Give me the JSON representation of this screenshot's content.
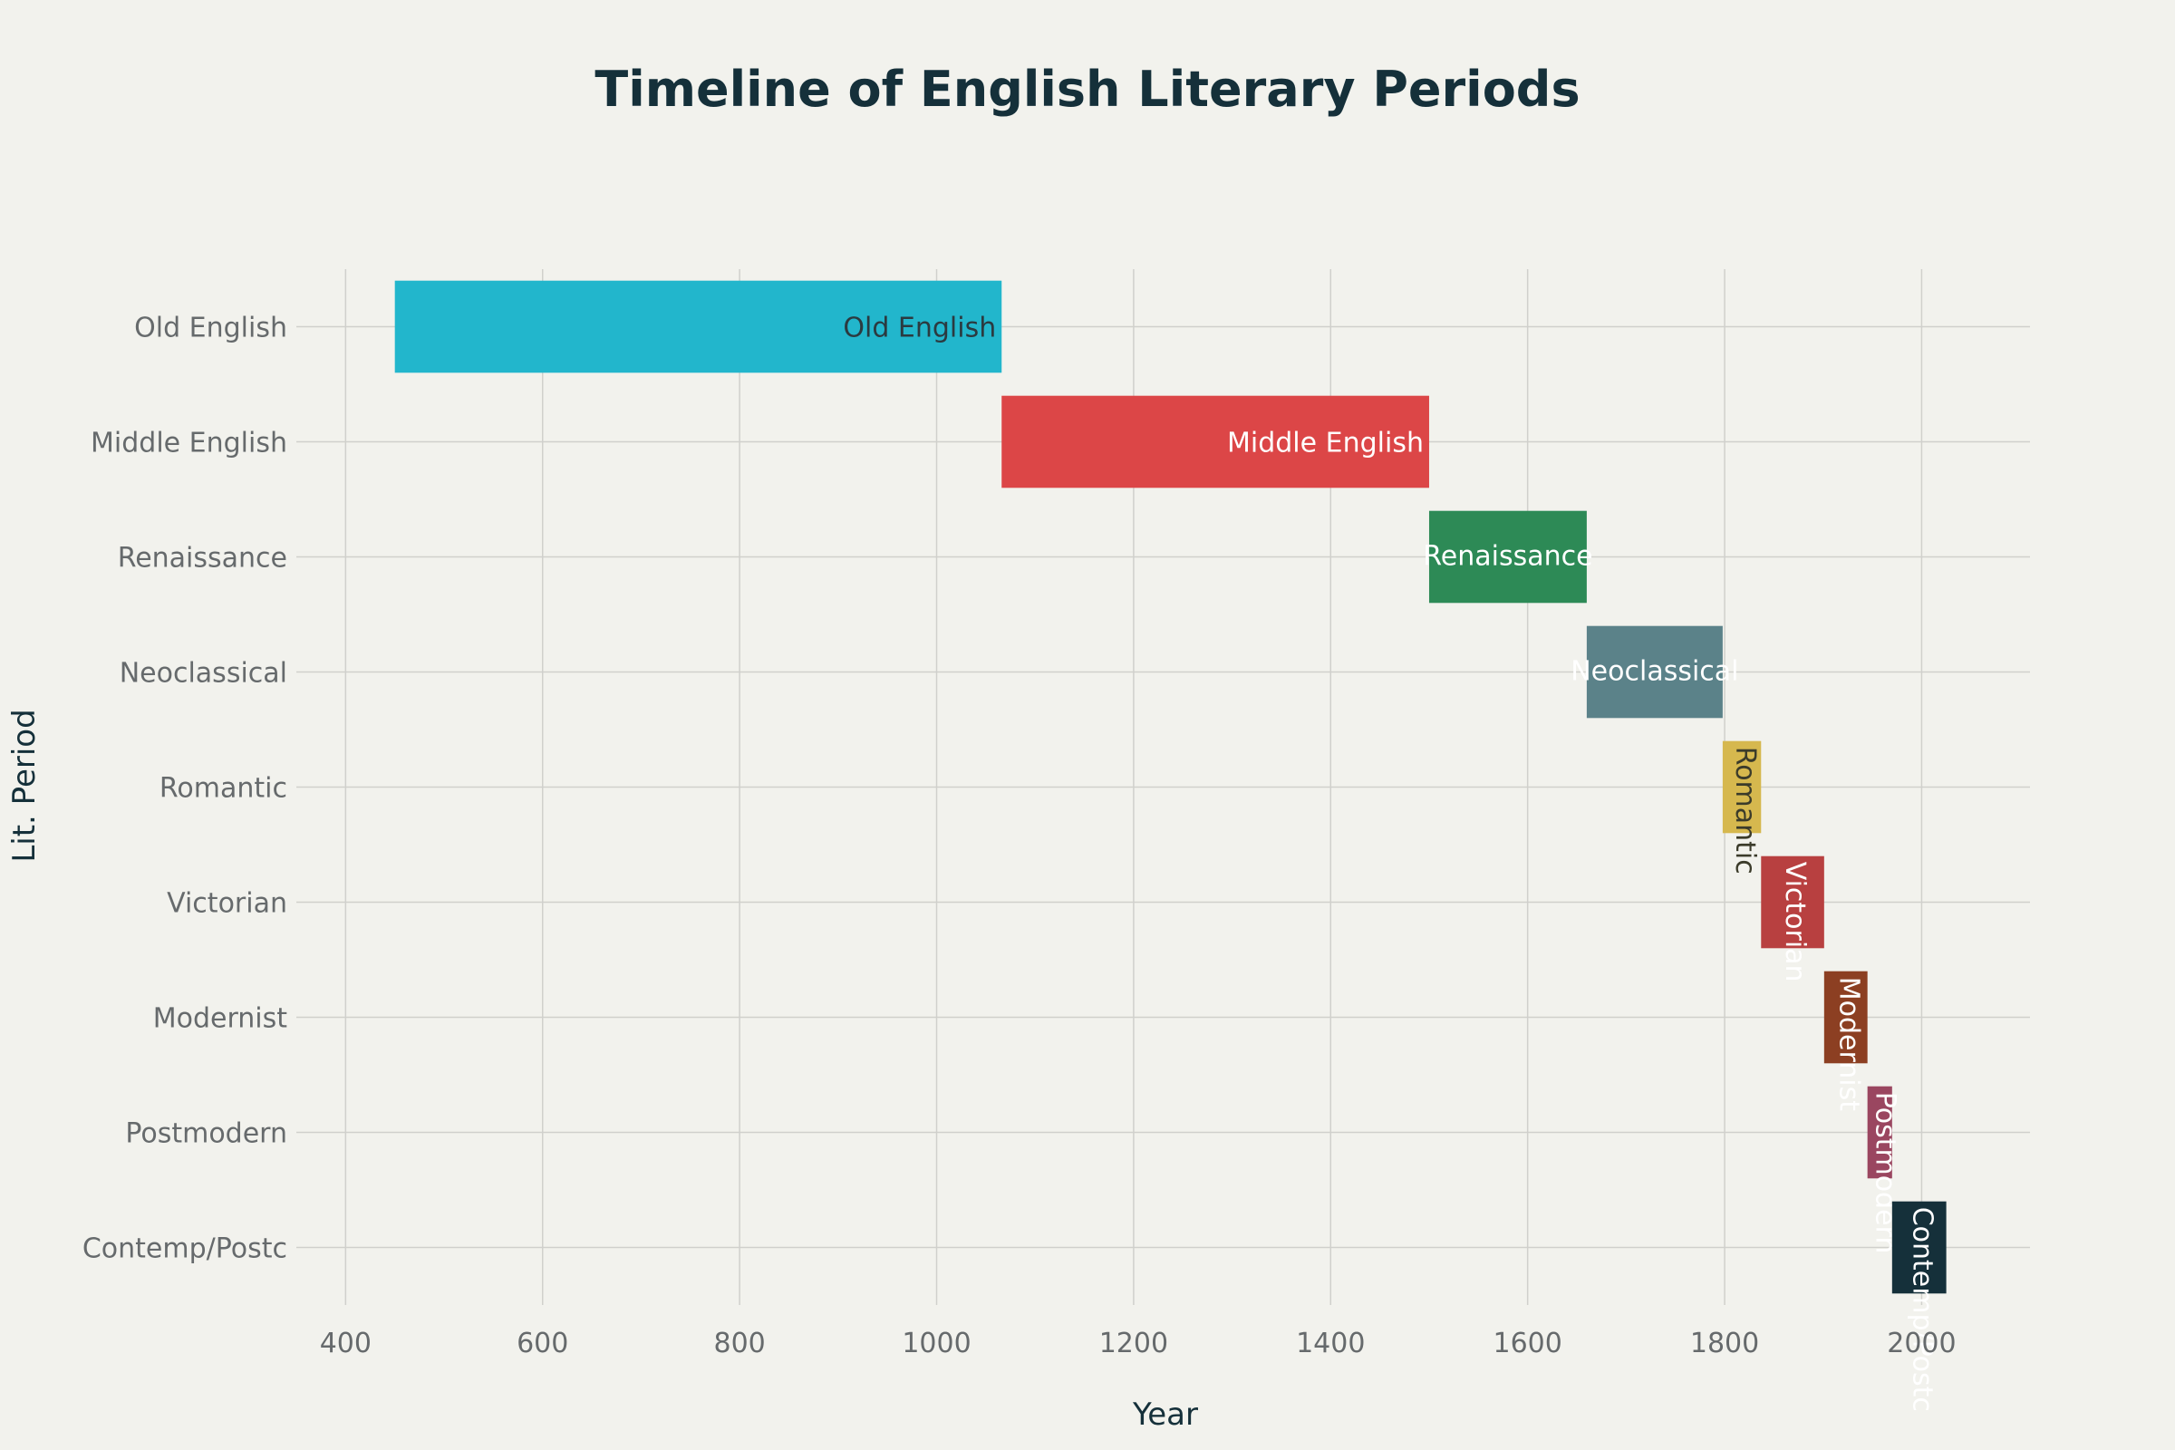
{
  "chart_data": {
    "type": "bar",
    "orientation": "horizontal-range",
    "title": "Timeline of English Literary Periods",
    "xlabel": "Year",
    "ylabel": "Lit. Period",
    "xlim": [
      350,
      2110
    ],
    "xticks": [
      400,
      600,
      800,
      1000,
      1200,
      1400,
      1600,
      1800,
      2000
    ],
    "grid": true,
    "legend": "none",
    "categories": [
      "Old English",
      "Middle English",
      "Renaissance",
      "Neoclassical",
      "Romantic",
      "Victorian",
      "Modernist",
      "Postmodern",
      "Contemp/Postc"
    ],
    "series": [
      {
        "label": "Old English",
        "start": 450,
        "end": 1066,
        "color": "#22b6cc",
        "text_color": "#2b3a40"
      },
      {
        "label": "Middle English",
        "start": 1066,
        "end": 1500,
        "color": "#dc4647",
        "text_color": "#ffffff"
      },
      {
        "label": "Renaissance",
        "start": 1500,
        "end": 1660,
        "color": "#2d8a56",
        "text_color": "#ffffff"
      },
      {
        "label": "Neoclassical",
        "start": 1660,
        "end": 1798,
        "color": "#5b8289",
        "text_color": "#ffffff"
      },
      {
        "label": "Romantic",
        "start": 1798,
        "end": 1837,
        "color": "#d6b84e",
        "text_color": "#3b3b2a"
      },
      {
        "label": "Victorian",
        "start": 1837,
        "end": 1901,
        "color": "#b84040",
        "text_color": "#ffffff"
      },
      {
        "label": "Modernist",
        "start": 1901,
        "end": 1945,
        "color": "#8c3f22",
        "text_color": "#ffffff"
      },
      {
        "label": "Postmodern",
        "start": 1945,
        "end": 1970,
        "color": "#9a4660",
        "text_color": "#ffffff"
      },
      {
        "label": "Contemp/Postc",
        "start": 1970,
        "end": 2025,
        "color": "#15303a",
        "text_color": "#ffffff"
      }
    ]
  }
}
